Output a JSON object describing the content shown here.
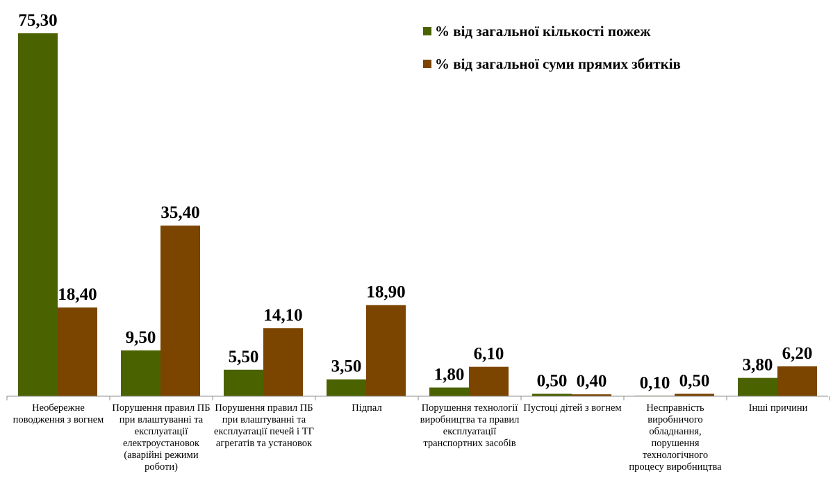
{
  "chart_data": {
    "type": "bar",
    "categories": [
      "Необережне поводження з вогнем",
      "Порушення правил ПБ при влаштуванні та експлуатації електроустановок (аварійні режими роботи)",
      "Порушення правил ПБ при влаштуванні та експлуатації печей і ТГ агрегатів та установок",
      "Підпал",
      "Порушення технології виробництва та правил експлуатації транспортних засобів",
      "Пустоці дітей з вогнем",
      "Несправність виробничого обладнання, порушення технологічного процесу виробництва",
      "Інші причини"
    ],
    "series": [
      {
        "name": "% від загальної кількості пожеж",
        "color": "#4b6200",
        "values": [
          75.3,
          9.5,
          5.5,
          3.5,
          1.8,
          0.5,
          0.1,
          3.8
        ],
        "labels": [
          "75,30",
          "9,50",
          "5,50",
          "3,50",
          "1,80",
          "0,50",
          "0,10",
          "3,80"
        ]
      },
      {
        "name": "% від загальної суми прямих збитків",
        "color": "#7b4500",
        "values": [
          18.4,
          35.4,
          14.1,
          18.9,
          6.1,
          0.4,
          0.5,
          6.2
        ],
        "labels": [
          "18,40",
          "35,40",
          "14,10",
          "18,90",
          "6,10",
          "0,40",
          "0,50",
          "6,20"
        ]
      }
    ],
    "ylim": [
      0,
      75.3
    ],
    "grid": false,
    "legend_position": "top-right"
  }
}
